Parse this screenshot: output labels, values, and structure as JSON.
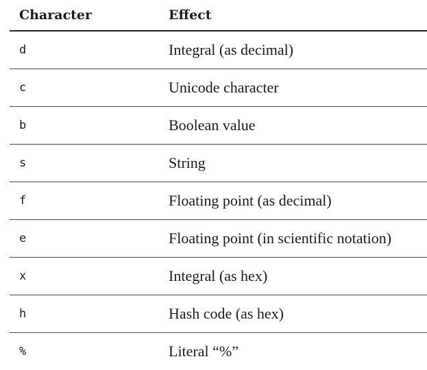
{
  "table": {
    "headers": [
      "Character",
      "Effect"
    ],
    "rows": [
      {
        "character": "d",
        "effect": "Integral (as decimal)"
      },
      {
        "character": "c",
        "effect": "Unicode character"
      },
      {
        "character": "b",
        "effect": "Boolean value"
      },
      {
        "character": "s",
        "effect": "String"
      },
      {
        "character": "f",
        "effect": "Floating point (as decimal)"
      },
      {
        "character": "e",
        "effect": "Floating point (in scientific notation)"
      },
      {
        "character": "x",
        "effect": "Integral (as hex)"
      },
      {
        "character": "h",
        "effect": "Hash code (as hex)"
      },
      {
        "character": "%",
        "effect": "Literal “%”"
      }
    ]
  }
}
